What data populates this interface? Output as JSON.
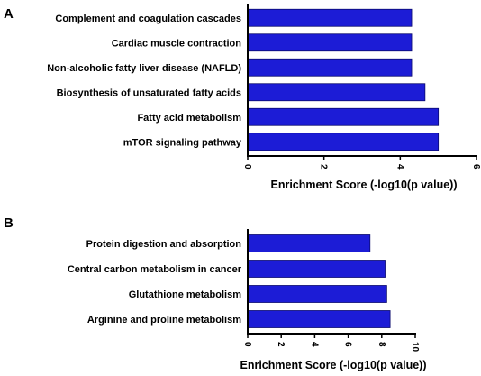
{
  "chart_data": [
    {
      "type": "bar",
      "orientation": "horizontal",
      "panel_label": "A",
      "categories": [
        "Complement and coagulation cascades",
        "Cardiac muscle contraction",
        "Non-alcoholic fatty liver disease (NAFLD)",
        "Biosynthesis of unsaturated fatty acids",
        "Fatty acid metabolism",
        "mTOR signaling pathway"
      ],
      "values": [
        4.3,
        4.3,
        4.3,
        4.65,
        5.0,
        5.0
      ],
      "xlim": [
        0,
        6
      ],
      "xticks": [
        "0",
        "2",
        "4",
        "6"
      ],
      "xlabel": "Enrichment Score (-log10(p value))",
      "color": "#1c1cd6"
    },
    {
      "type": "bar",
      "orientation": "horizontal",
      "panel_label": "B",
      "categories": [
        "Protein digestion and absorption",
        "Central carbon metabolism in cancer",
        "Glutathione metabolism",
        "Arginine and proline metabolism"
      ],
      "values": [
        7.3,
        8.2,
        8.3,
        8.5
      ],
      "xlim": [
        0,
        10
      ],
      "xticks": [
        "0",
        "2",
        "4",
        "6",
        "8",
        "10"
      ],
      "xlabel": "Enrichment Score (-log10(p value))",
      "color": "#1c1cd6"
    }
  ]
}
